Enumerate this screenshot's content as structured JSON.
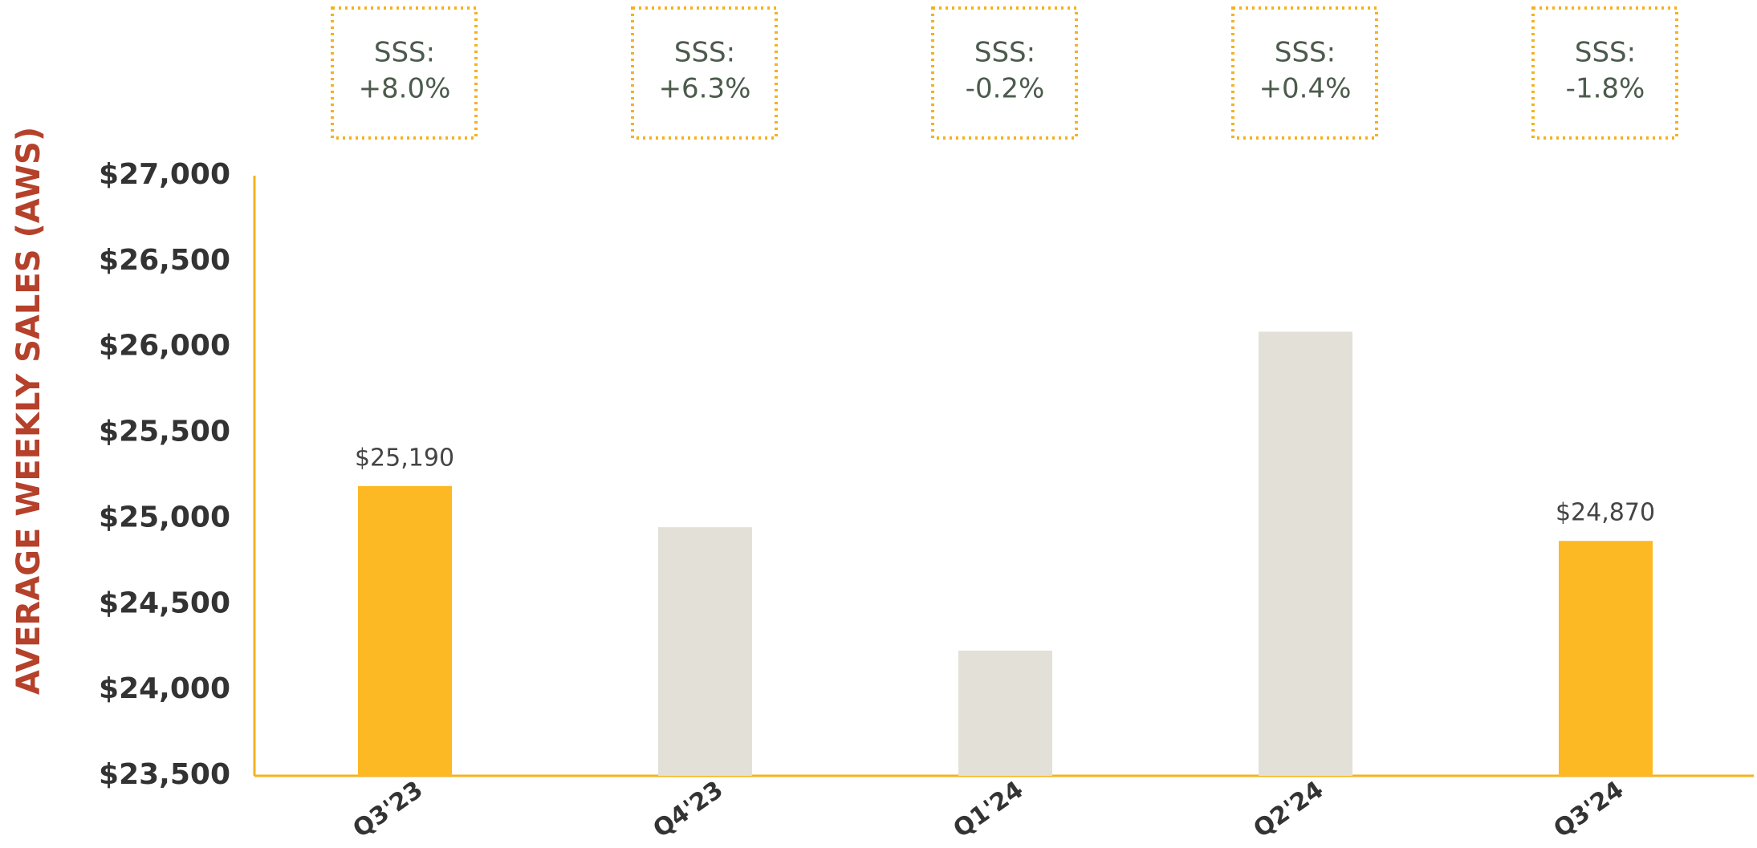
{
  "chart_data": {
    "type": "bar",
    "y_axis_label": "AVERAGE WEEKLY SALES (AWS)",
    "categories": [
      "Q3'23",
      "Q4'23",
      "Q1'24",
      "Q2'24",
      "Q3'24"
    ],
    "values": [
      25190,
      24950,
      24230,
      26090,
      24870
    ],
    "value_labels": [
      "$25,190",
      null,
      null,
      null,
      "$24,870"
    ],
    "colors": [
      "#FDB924",
      "#E3E0D8",
      "#E3E0D8",
      "#E3E0D8",
      "#FDB924"
    ],
    "annotations": [
      [
        "SSS:",
        "+8.0%"
      ],
      [
        "SSS:",
        "+6.3%"
      ],
      [
        "SSS:",
        "-0.2%"
      ],
      [
        "SSS:",
        "+0.4%"
      ],
      [
        "SSS:",
        "-1.8%"
      ]
    ],
    "ylim": [
      23500,
      27000
    ],
    "yticks": [
      {
        "value": 23500,
        "label": "$23,500"
      },
      {
        "value": 24000,
        "label": "$24,000"
      },
      {
        "value": 24500,
        "label": "$24,500"
      },
      {
        "value": 25000,
        "label": "$25,000"
      },
      {
        "value": 25500,
        "label": "$25,500"
      },
      {
        "value": 26000,
        "label": "$26,000"
      },
      {
        "value": 26500,
        "label": "$26,500"
      },
      {
        "value": 27000,
        "label": "$27,000"
      }
    ],
    "axis_color": "#F5B21E",
    "grid": false
  }
}
